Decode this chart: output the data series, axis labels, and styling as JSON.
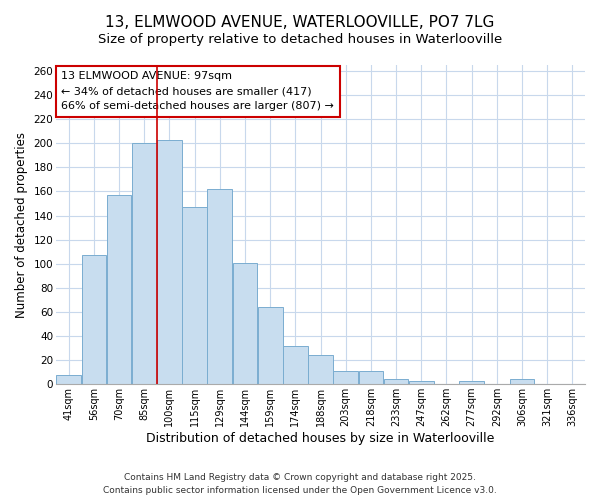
{
  "title": "13, ELMWOOD AVENUE, WATERLOOVILLE, PO7 7LG",
  "subtitle": "Size of property relative to detached houses in Waterlooville",
  "xlabel": "Distribution of detached houses by size in Waterlooville",
  "ylabel": "Number of detached properties",
  "categories": [
    "41sqm",
    "56sqm",
    "70sqm",
    "85sqm",
    "100sqm",
    "115sqm",
    "129sqm",
    "144sqm",
    "159sqm",
    "174sqm",
    "188sqm",
    "203sqm",
    "218sqm",
    "233sqm",
    "247sqm",
    "262sqm",
    "277sqm",
    "292sqm",
    "306sqm",
    "321sqm",
    "336sqm"
  ],
  "values": [
    8,
    107,
    157,
    200,
    203,
    147,
    162,
    101,
    64,
    32,
    24,
    11,
    11,
    4,
    3,
    0,
    3,
    0,
    4,
    0,
    0
  ],
  "bar_color": "#c8ddef",
  "bar_edge_color": "#7aadd0",
  "vline_x_index": 4,
  "vline_color": "#cc0000",
  "annotation_text": "13 ELMWOOD AVENUE: 97sqm\n← 34% of detached houses are smaller (417)\n66% of semi-detached houses are larger (807) →",
  "annotation_box_edgecolor": "#cc0000",
  "annotation_fontsize": 8,
  "ylim": [
    0,
    265
  ],
  "yticks": [
    0,
    20,
    40,
    60,
    80,
    100,
    120,
    140,
    160,
    180,
    200,
    220,
    240,
    260
  ],
  "footer_line1": "Contains HM Land Registry data © Crown copyright and database right 2025.",
  "footer_line2": "Contains public sector information licensed under the Open Government Licence v3.0.",
  "title_fontsize": 11,
  "subtitle_fontsize": 9.5,
  "xlabel_fontsize": 9,
  "ylabel_fontsize": 8.5,
  "footer_fontsize": 6.5,
  "bg_color": "#ffffff",
  "grid_color": "#c8d8ec"
}
